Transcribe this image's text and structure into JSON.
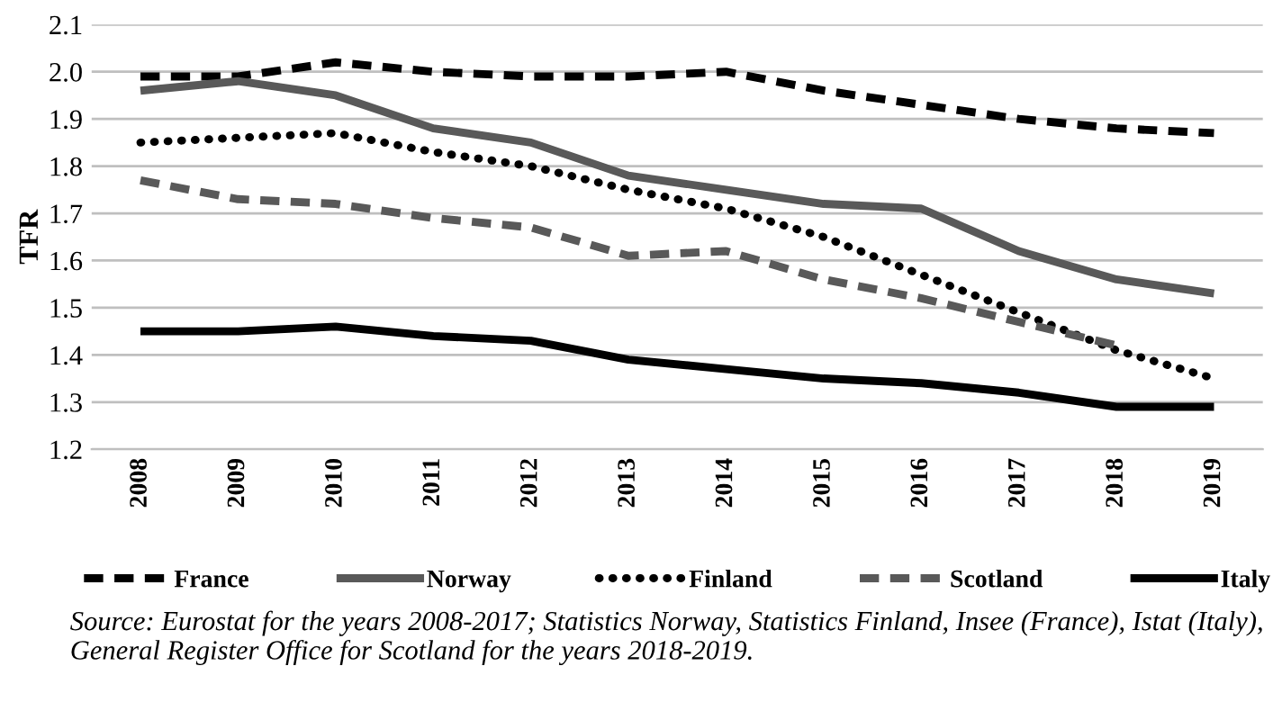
{
  "chart_data": {
    "type": "line",
    "ylabel": "TFR",
    "categories": [
      "2008",
      "2009",
      "2010",
      "2011",
      "2012",
      "2013",
      "2014",
      "2015",
      "2016",
      "2017",
      "2018",
      "2019"
    ],
    "series": [
      {
        "name": "France",
        "color": "#000000",
        "line_style": "dashed",
        "values": [
          1.99,
          1.99,
          2.02,
          2.0,
          1.99,
          1.99,
          2.0,
          1.96,
          1.93,
          1.9,
          1.88,
          1.87
        ]
      },
      {
        "name": "Norway",
        "color": "#595959",
        "line_style": "solid",
        "values": [
          1.96,
          1.98,
          1.95,
          1.88,
          1.85,
          1.78,
          1.75,
          1.72,
          1.71,
          1.62,
          1.56,
          1.53
        ]
      },
      {
        "name": "Finland",
        "color": "#000000",
        "line_style": "dotted",
        "values": [
          1.85,
          1.86,
          1.87,
          1.83,
          1.8,
          1.75,
          1.71,
          1.65,
          1.57,
          1.49,
          1.41,
          1.35
        ]
      },
      {
        "name": "Scotland",
        "color": "#595959",
        "line_style": "dashed",
        "values": [
          1.77,
          1.73,
          1.72,
          1.69,
          1.67,
          1.61,
          1.62,
          1.56,
          1.52,
          1.47,
          1.42,
          null
        ]
      },
      {
        "name": "Italy",
        "color": "#000000",
        "line_style": "solid",
        "values": [
          1.45,
          1.45,
          1.46,
          1.44,
          1.43,
          1.39,
          1.37,
          1.35,
          1.34,
          1.32,
          1.29,
          1.29
        ]
      }
    ],
    "ylim": [
      1.2,
      2.1
    ],
    "yticks": [
      1.2,
      1.3,
      1.4,
      1.5,
      1.6,
      1.7,
      1.8,
      1.9,
      {
        "value": 2,
        "label": "2.0"
      },
      2.1
    ],
    "grid": "y",
    "legend": "bottom",
    "marker": "none",
    "annotations": [
      "Source: Eurostat for the years 2008-2017; Statistics Norway, Statistics Finland, Insee (France), Istat (Italy), General Register Office for Scotland for the years 2018-2019."
    ]
  }
}
